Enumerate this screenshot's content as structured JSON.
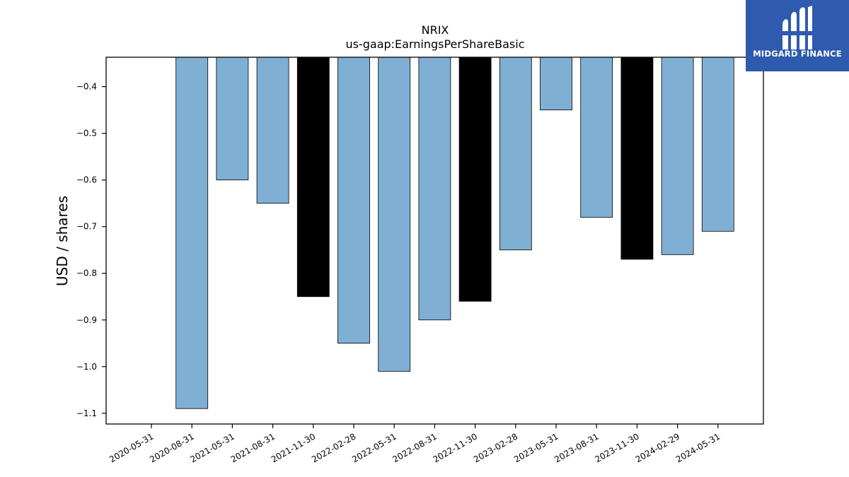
{
  "brand": {
    "name": "MIDGARD FINANCE",
    "background": "#2f5bae",
    "icon": "midgard-logo-icon"
  },
  "chart_data": {
    "type": "bar",
    "title": "NRIX",
    "subtitle": "us-gaap:EarningsPerShareBasic",
    "xlabel": "",
    "ylabel": "USD / shares",
    "categories": [
      "2020-05-31",
      "2020-08-31",
      "2021-05-31",
      "2021-08-31",
      "2021-11-30",
      "2022-02-28",
      "2022-05-31",
      "2022-08-31",
      "2022-11-30",
      "2023-02-28",
      "2023-05-31",
      "2023-08-31",
      "2023-11-30",
      "2024-02-29",
      "2024-05-31"
    ],
    "values": [
      null,
      -1.09,
      -0.6,
      -0.65,
      -0.85,
      -0.95,
      -1.01,
      -0.9,
      -0.86,
      -0.75,
      -0.45,
      -0.68,
      -0.77,
      -0.76,
      -0.71
    ],
    "highlight": [
      false,
      false,
      false,
      false,
      true,
      false,
      false,
      false,
      true,
      false,
      false,
      false,
      true,
      false,
      false
    ],
    "colors": {
      "bar": "#7fafd3",
      "highlight": "#000000",
      "edge": "#000000"
    },
    "ylim": [
      -1.123,
      -0.337
    ],
    "yticks": [
      -0.4,
      -0.5,
      -0.6,
      -0.7,
      -0.8,
      -0.9,
      -1.0,
      -1.1
    ],
    "ytick_labels": [
      "−0.4",
      "−0.5",
      "−0.6",
      "−0.7",
      "−0.8",
      "−0.9",
      "−1.0",
      "−1.1"
    ],
    "grid": false,
    "legend": "none"
  }
}
